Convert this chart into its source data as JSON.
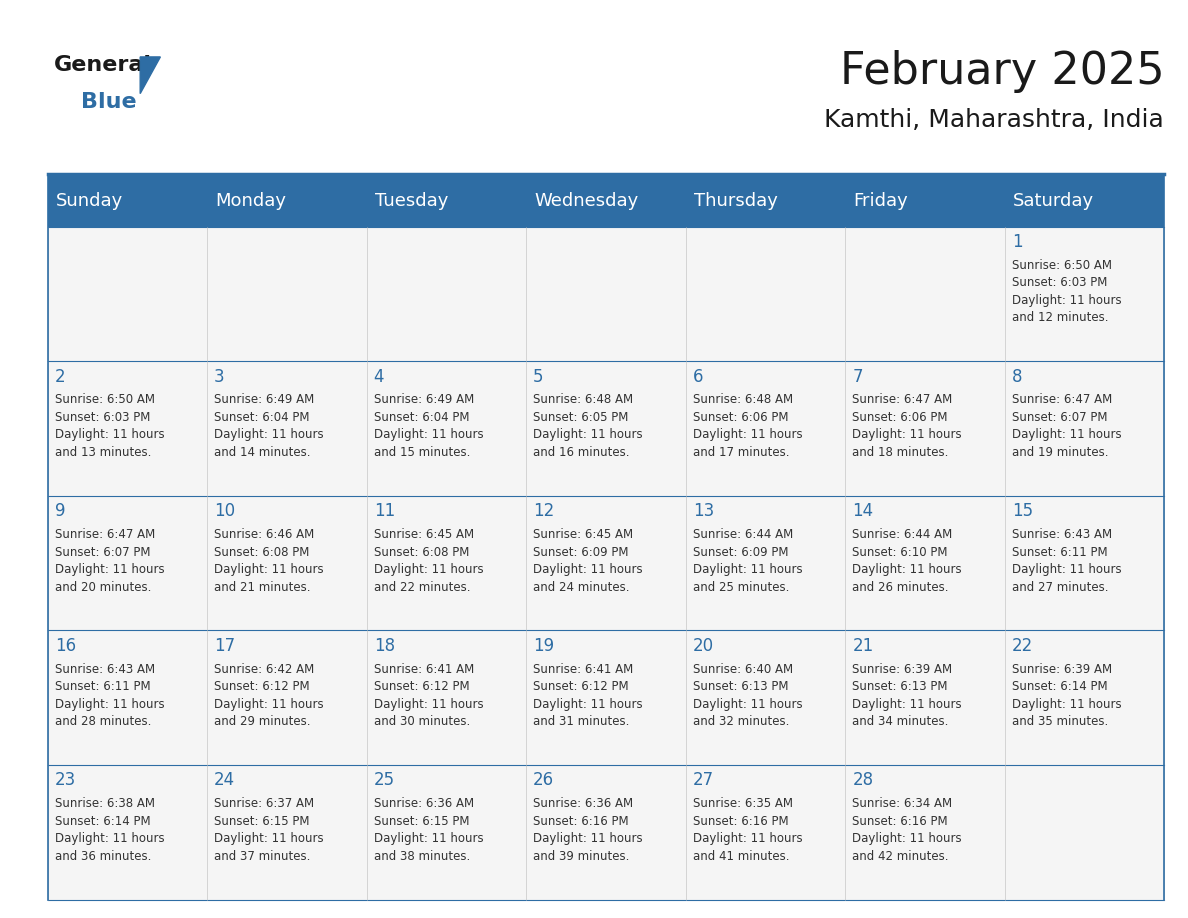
{
  "title": "February 2025",
  "subtitle": "Kamthi, Maharashtra, India",
  "header_bg_color": "#2E6DA4",
  "header_text_color": "#FFFFFF",
  "day_names": [
    "Sunday",
    "Monday",
    "Tuesday",
    "Wednesday",
    "Thursday",
    "Friday",
    "Saturday"
  ],
  "bg_color": "#FFFFFF",
  "cell_bg_color": "#F5F5F5",
  "border_color": "#2E6DA4",
  "day_num_color": "#2E6DA4",
  "text_color": "#333333",
  "title_fontsize": 32,
  "subtitle_fontsize": 18,
  "header_fontsize": 13,
  "day_num_fontsize": 12,
  "cell_fontsize": 8.5,
  "calendar_data": [
    [
      null,
      null,
      null,
      null,
      null,
      null,
      {
        "day": 1,
        "sunrise": "6:50 AM",
        "sunset": "6:03 PM",
        "daylight_hours": 11,
        "daylight_minutes": 12
      }
    ],
    [
      {
        "day": 2,
        "sunrise": "6:50 AM",
        "sunset": "6:03 PM",
        "daylight_hours": 11,
        "daylight_minutes": 13
      },
      {
        "day": 3,
        "sunrise": "6:49 AM",
        "sunset": "6:04 PM",
        "daylight_hours": 11,
        "daylight_minutes": 14
      },
      {
        "day": 4,
        "sunrise": "6:49 AM",
        "sunset": "6:04 PM",
        "daylight_hours": 11,
        "daylight_minutes": 15
      },
      {
        "day": 5,
        "sunrise": "6:48 AM",
        "sunset": "6:05 PM",
        "daylight_hours": 11,
        "daylight_minutes": 16
      },
      {
        "day": 6,
        "sunrise": "6:48 AM",
        "sunset": "6:06 PM",
        "daylight_hours": 11,
        "daylight_minutes": 17
      },
      {
        "day": 7,
        "sunrise": "6:47 AM",
        "sunset": "6:06 PM",
        "daylight_hours": 11,
        "daylight_minutes": 18
      },
      {
        "day": 8,
        "sunrise": "6:47 AM",
        "sunset": "6:07 PM",
        "daylight_hours": 11,
        "daylight_minutes": 19
      }
    ],
    [
      {
        "day": 9,
        "sunrise": "6:47 AM",
        "sunset": "6:07 PM",
        "daylight_hours": 11,
        "daylight_minutes": 20
      },
      {
        "day": 10,
        "sunrise": "6:46 AM",
        "sunset": "6:08 PM",
        "daylight_hours": 11,
        "daylight_minutes": 21
      },
      {
        "day": 11,
        "sunrise": "6:45 AM",
        "sunset": "6:08 PM",
        "daylight_hours": 11,
        "daylight_minutes": 22
      },
      {
        "day": 12,
        "sunrise": "6:45 AM",
        "sunset": "6:09 PM",
        "daylight_hours": 11,
        "daylight_minutes": 24
      },
      {
        "day": 13,
        "sunrise": "6:44 AM",
        "sunset": "6:09 PM",
        "daylight_hours": 11,
        "daylight_minutes": 25
      },
      {
        "day": 14,
        "sunrise": "6:44 AM",
        "sunset": "6:10 PM",
        "daylight_hours": 11,
        "daylight_minutes": 26
      },
      {
        "day": 15,
        "sunrise": "6:43 AM",
        "sunset": "6:11 PM",
        "daylight_hours": 11,
        "daylight_minutes": 27
      }
    ],
    [
      {
        "day": 16,
        "sunrise": "6:43 AM",
        "sunset": "6:11 PM",
        "daylight_hours": 11,
        "daylight_minutes": 28
      },
      {
        "day": 17,
        "sunrise": "6:42 AM",
        "sunset": "6:12 PM",
        "daylight_hours": 11,
        "daylight_minutes": 29
      },
      {
        "day": 18,
        "sunrise": "6:41 AM",
        "sunset": "6:12 PM",
        "daylight_hours": 11,
        "daylight_minutes": 30
      },
      {
        "day": 19,
        "sunrise": "6:41 AM",
        "sunset": "6:12 PM",
        "daylight_hours": 11,
        "daylight_minutes": 31
      },
      {
        "day": 20,
        "sunrise": "6:40 AM",
        "sunset": "6:13 PM",
        "daylight_hours": 11,
        "daylight_minutes": 32
      },
      {
        "day": 21,
        "sunrise": "6:39 AM",
        "sunset": "6:13 PM",
        "daylight_hours": 11,
        "daylight_minutes": 34
      },
      {
        "day": 22,
        "sunrise": "6:39 AM",
        "sunset": "6:14 PM",
        "daylight_hours": 11,
        "daylight_minutes": 35
      }
    ],
    [
      {
        "day": 23,
        "sunrise": "6:38 AM",
        "sunset": "6:14 PM",
        "daylight_hours": 11,
        "daylight_minutes": 36
      },
      {
        "day": 24,
        "sunrise": "6:37 AM",
        "sunset": "6:15 PM",
        "daylight_hours": 11,
        "daylight_minutes": 37
      },
      {
        "day": 25,
        "sunrise": "6:36 AM",
        "sunset": "6:15 PM",
        "daylight_hours": 11,
        "daylight_minutes": 38
      },
      {
        "day": 26,
        "sunrise": "6:36 AM",
        "sunset": "6:16 PM",
        "daylight_hours": 11,
        "daylight_minutes": 39
      },
      {
        "day": 27,
        "sunrise": "6:35 AM",
        "sunset": "6:16 PM",
        "daylight_hours": 11,
        "daylight_minutes": 41
      },
      {
        "day": 28,
        "sunrise": "6:34 AM",
        "sunset": "6:16 PM",
        "daylight_hours": 11,
        "daylight_minutes": 42
      },
      null
    ]
  ]
}
